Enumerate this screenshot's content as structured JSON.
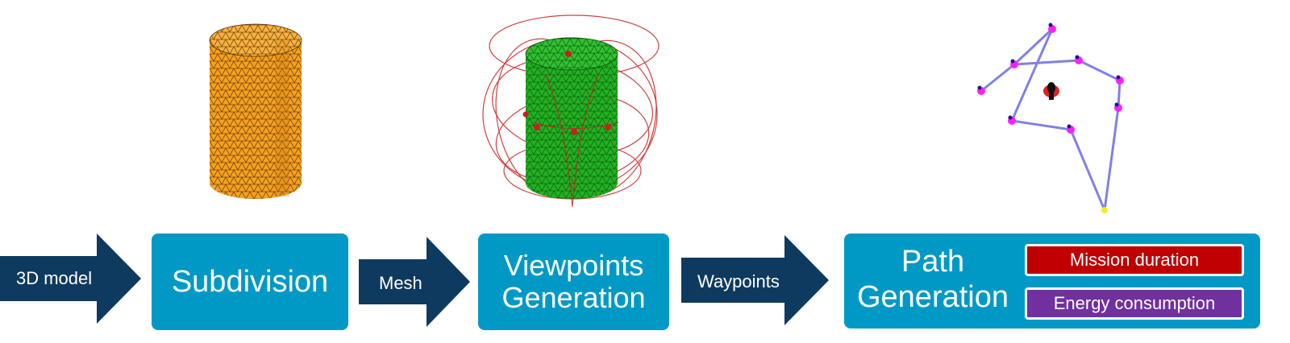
{
  "flow": {
    "arrow1_label": "3D model",
    "arrow2_label": "Mesh",
    "arrow3_label": "Waypoints",
    "box1_label": "Subdivision",
    "box2_line1": "Viewpoints",
    "box2_line2": "Generation",
    "box3_line1": "Path",
    "box3_line2": "Generation",
    "tag1_label": "Mission duration",
    "tag2_label": "Energy consumption"
  },
  "colors": {
    "arrow": "#0f3a5f",
    "box": "#0099c6",
    "tag_red": "#c00000",
    "tag_purple": "#7030a0",
    "cylinder_orange": "#f5a020",
    "cylinder_green": "#22b022",
    "viewpoint_red": "#c82020",
    "path_line": "#8080e8",
    "waypoint_magenta": "#ff20ff"
  },
  "illustrations": {
    "model": "orange-meshed-cylinder",
    "viewpoints": "green-meshed-cylinder-with-red-viewpoint-spheres",
    "path": "waypoint-path-graph"
  }
}
